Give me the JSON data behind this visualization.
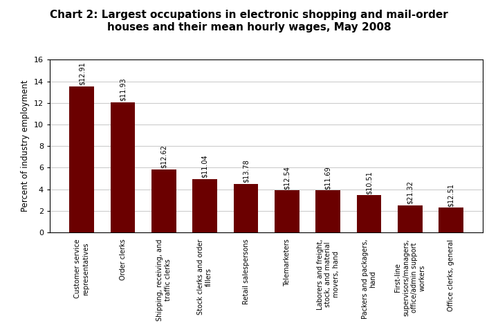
{
  "title": "Chart 2: Largest occupations in electronic shopping and mail-order\nhouses and their mean hourly wages, May 2008",
  "categories": [
    "Customer service\nrepresentatives",
    "Order clerks",
    "Shipping, receiving, and\ntraffic clerks",
    "Stock clerks and order\nfillers",
    "Retail salespersons",
    "Telemarketers",
    "Laborers and freight,\nstock, and material\nmovers, hand",
    "Packers and packagers,\nhand",
    "First-line\nsupervisors/managers,\noffice/admin support\nworkers",
    "Office clerks, general"
  ],
  "values": [
    13.55,
    12.05,
    5.85,
    4.95,
    4.5,
    3.9,
    3.9,
    3.45,
    2.5,
    2.3
  ],
  "wages": [
    "$12.91",
    "$11.93",
    "$12.62",
    "$11.04",
    "$13.78",
    "$12.54",
    "$11.69",
    "$10.51",
    "$21.32",
    "$12.51"
  ],
  "bar_color": "#6B0000",
  "ylabel": "Percent of industry employment",
  "ylim": [
    0,
    16
  ],
  "yticks": [
    0,
    2,
    4,
    6,
    8,
    10,
    12,
    14,
    16
  ],
  "background_color": "#ffffff",
  "title_fontsize": 11,
  "label_fontsize": 7,
  "wage_fontsize": 7,
  "ylabel_fontsize": 8.5
}
